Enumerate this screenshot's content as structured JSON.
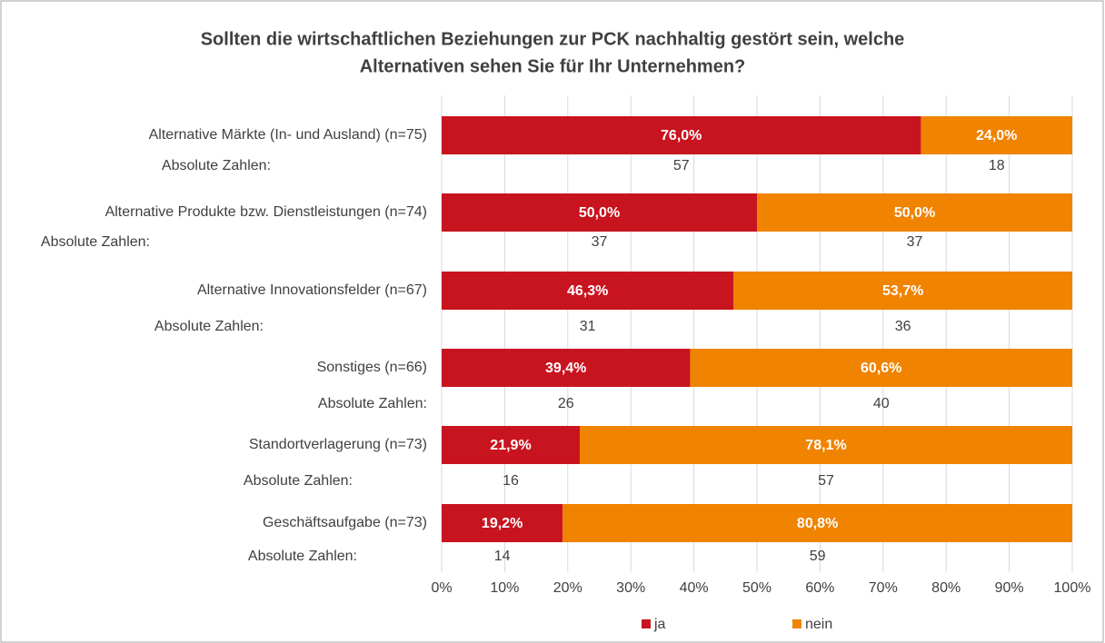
{
  "chart_data": {
    "type": "stacked-bar",
    "orientation": "horizontal",
    "title": [
      "Sollten die wirtschaftlichen Beziehungen zur PCK nachhaltig gestört sein, welche",
      "Alternativen sehen Sie für Ihr Unternehmen?"
    ],
    "categories": [
      "Alternative Märkte (In- und Ausland) (n=75)",
      "Alternative Produkte bzw. Dienstleistungen (n=74)",
      "Alternative Innovationsfelder (n=67)",
      "Sonstiges (n=66)",
      "Standortverlagerung (n=73)",
      "Geschäftsaufgabe (n=73)"
    ],
    "absolute_label": "Absolute Zahlen:",
    "series": [
      {
        "name": "ja",
        "color": "#c8141f",
        "values": [
          76.0,
          50.0,
          46.3,
          39.4,
          21.9,
          19.2
        ],
        "value_labels": [
          "76,0%",
          "50,0%",
          "46,3%",
          "39,4%",
          "21,9%",
          "19,2%"
        ],
        "counts": [
          57,
          37,
          31,
          26,
          16,
          14
        ]
      },
      {
        "name": "nein",
        "color": "#f08300",
        "values": [
          24.0,
          50.0,
          53.7,
          60.6,
          78.1,
          80.8
        ],
        "value_labels": [
          "24,0%",
          "50,0%",
          "53,7%",
          "60,6%",
          "78,1%",
          "80,8%"
        ],
        "counts": [
          18,
          37,
          36,
          40,
          57,
          59
        ]
      }
    ],
    "xlim": [
      0,
      100
    ],
    "xticks": [
      {
        "value": 0,
        "label": "0%"
      },
      {
        "value": 10,
        "label": "10%"
      },
      {
        "value": 20,
        "label": "20%"
      },
      {
        "value": 30,
        "label": "30%"
      },
      {
        "value": 40,
        "label": "40%"
      },
      {
        "value": 50,
        "label": "50%"
      },
      {
        "value": 60,
        "label": "60%"
      },
      {
        "value": 70,
        "label": "70%"
      },
      {
        "value": 80,
        "label": "80%"
      },
      {
        "value": 90,
        "label": "90%"
      },
      {
        "value": 100,
        "label": "100%"
      }
    ],
    "grid": true,
    "legend": "bottom"
  }
}
